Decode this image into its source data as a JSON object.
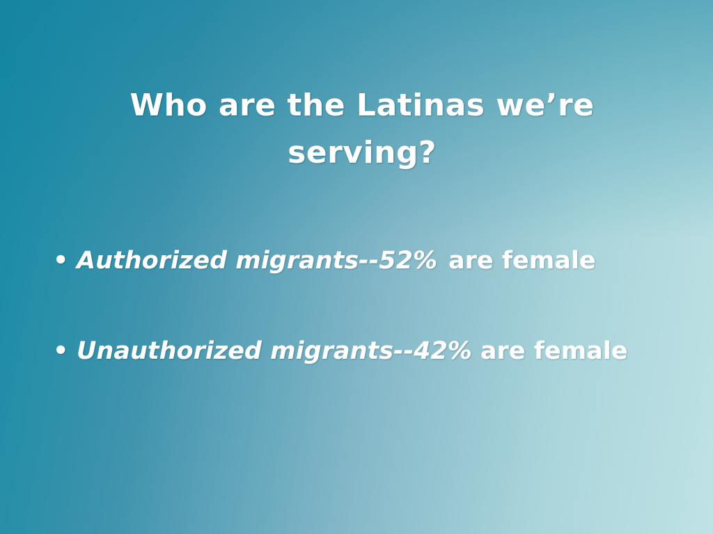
{
  "title": "Who are the Latinas we’re serving?",
  "bullets": [
    {
      "emphasis": "Authorized migrants--52%",
      "text": "are female"
    },
    {
      "emphasis": "Unauthorized migrants--42%",
      "text": "are female"
    }
  ]
}
